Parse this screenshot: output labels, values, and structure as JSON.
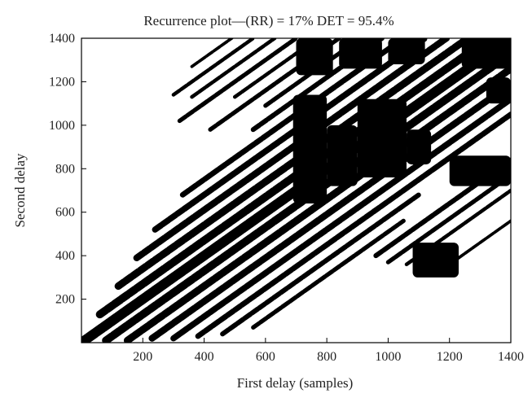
{
  "chart_data": {
    "type": "scatter",
    "title": "Recurrence plot—(RR) = 17%      DET = 95.4%",
    "xlabel": "First delay (samples)",
    "ylabel": "Second delay",
    "xlim": [
      0,
      1400
    ],
    "ylim": [
      0,
      1400
    ],
    "xticks": [
      200,
      400,
      600,
      800,
      1000,
      1200,
      1400
    ],
    "yticks": [
      200,
      400,
      600,
      800,
      1000,
      1200,
      1400
    ],
    "grid": false,
    "legend": "none",
    "marker_color": "#000000",
    "diagonal_bands": [
      {
        "offset": 0,
        "x_start": 0,
        "x_end": 1400,
        "width": 32
      },
      {
        "offset": 70,
        "x_start": 60,
        "x_end": 1330,
        "width": 26
      },
      {
        "offset": -70,
        "x_start": 80,
        "x_end": 1400,
        "width": 26
      },
      {
        "offset": 140,
        "x_start": 120,
        "x_end": 1260,
        "width": 24
      },
      {
        "offset": -140,
        "x_start": 150,
        "x_end": 1400,
        "width": 24
      },
      {
        "offset": 210,
        "x_start": 180,
        "x_end": 1190,
        "width": 22
      },
      {
        "offset": -210,
        "x_start": 230,
        "x_end": 1400,
        "width": 22
      },
      {
        "offset": 280,
        "x_start": 240,
        "x_end": 1120,
        "width": 20
      },
      {
        "offset": -280,
        "x_start": 300,
        "x_end": 1400,
        "width": 20
      },
      {
        "offset": 350,
        "x_start": 330,
        "x_end": 1050,
        "width": 18
      },
      {
        "offset": -350,
        "x_start": 380,
        "x_end": 1400,
        "width": 18
      },
      {
        "offset": 420,
        "x_start": 560,
        "x_end": 980,
        "width": 16
      },
      {
        "offset": -420,
        "x_start": 460,
        "x_end": 1100,
        "width": 16
      },
      {
        "offset": 490,
        "x_start": 600,
        "x_end": 900,
        "width": 14
      },
      {
        "offset": -490,
        "x_start": 560,
        "x_end": 1050,
        "width": 14
      },
      {
        "offset": 560,
        "x_start": 420,
        "x_end": 840,
        "width": 14
      },
      {
        "offset": -560,
        "x_start": 960,
        "x_end": 1400,
        "width": 16
      },
      {
        "offset": 630,
        "x_start": 500,
        "x_end": 770,
        "width": 12
      },
      {
        "offset": -630,
        "x_start": 1000,
        "x_end": 1400,
        "width": 14
      },
      {
        "offset": 700,
        "x_start": 320,
        "x_end": 700,
        "width": 14
      },
      {
        "offset": -700,
        "x_start": 1060,
        "x_end": 1400,
        "width": 12
      },
      {
        "offset": 770,
        "x_start": 360,
        "x_end": 630,
        "width": 12
      },
      {
        "offset": 840,
        "x_start": 300,
        "x_end": 560,
        "width": 12
      },
      {
        "offset": -840,
        "x_start": 1180,
        "x_end": 1400,
        "width": 10
      },
      {
        "offset": 910,
        "x_start": 360,
        "x_end": 490,
        "width": 10
      }
    ],
    "dense_regions": [
      {
        "x": [
          690,
          800
        ],
        "y": [
          640,
          1140
        ]
      },
      {
        "x": [
          800,
          900
        ],
        "y": [
          720,
          1000
        ]
      },
      {
        "x": [
          900,
          1060
        ],
        "y": [
          760,
          1120
        ]
      },
      {
        "x": [
          1060,
          1140
        ],
        "y": [
          820,
          980
        ]
      },
      {
        "x": [
          700,
          820
        ],
        "y": [
          1230,
          1400
        ]
      },
      {
        "x": [
          840,
          980
        ],
        "y": [
          1260,
          1400
        ]
      },
      {
        "x": [
          1000,
          1120
        ],
        "y": [
          1280,
          1400
        ]
      },
      {
        "x": [
          1240,
          1400
        ],
        "y": [
          1260,
          1400
        ]
      },
      {
        "x": [
          1200,
          1400
        ],
        "y": [
          720,
          860
        ]
      },
      {
        "x": [
          1080,
          1230
        ],
        "y": [
          300,
          460
        ]
      },
      {
        "x": [
          1320,
          1400
        ],
        "y": [
          1100,
          1220
        ]
      }
    ]
  }
}
